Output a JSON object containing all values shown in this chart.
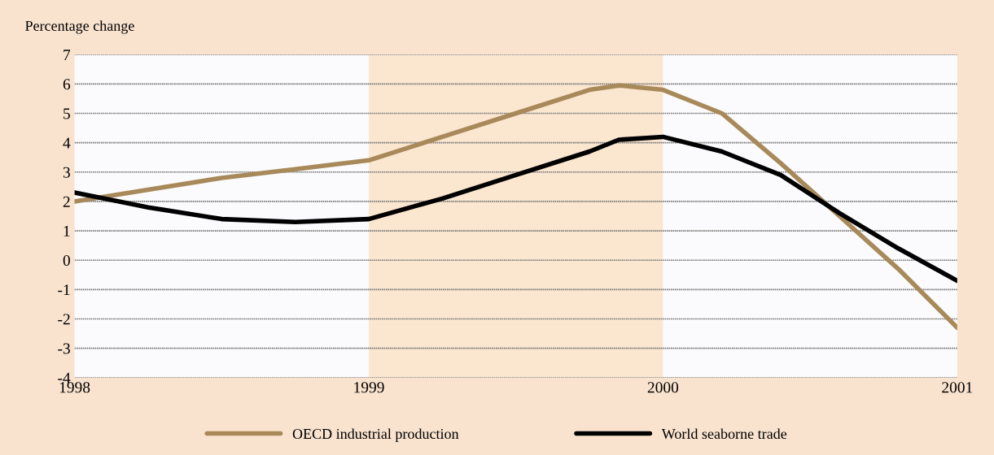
{
  "chart_data": {
    "type": "line",
    "ylabel": "Percentage change",
    "x": [
      1998.0,
      1998.25,
      1998.5,
      1998.75,
      1999.0,
      1999.25,
      1999.5,
      1999.75,
      1999.85,
      2000.0,
      2000.2,
      2000.4,
      2000.6,
      2000.8,
      2001.0
    ],
    "series": [
      {
        "name": "OECD industrial production",
        "color": "#a8895a",
        "values": [
          2.0,
          2.4,
          2.8,
          3.1,
          3.4,
          4.2,
          5.0,
          5.8,
          5.95,
          5.8,
          5.0,
          3.3,
          1.5,
          -0.3,
          -2.3
        ]
      },
      {
        "name": "World seaborne trade",
        "color": "#000000",
        "values": [
          2.3,
          1.8,
          1.4,
          1.3,
          1.4,
          2.1,
          2.9,
          3.7,
          4.1,
          4.2,
          3.7,
          2.9,
          1.6,
          0.4,
          -0.7
        ]
      }
    ],
    "xlim": [
      1998,
      2001
    ],
    "xticks": [
      1998,
      1999,
      2000,
      2001
    ],
    "ylim": [
      -4,
      7
    ],
    "yticks": [
      -4,
      -3,
      -2,
      -1,
      0,
      1,
      2,
      3,
      4,
      5,
      6,
      7
    ],
    "bands": [
      {
        "axis": "x",
        "from": 1999,
        "to": 2000,
        "color": "#fbe6d0"
      }
    ],
    "grid": "y",
    "legend": "bottom"
  }
}
